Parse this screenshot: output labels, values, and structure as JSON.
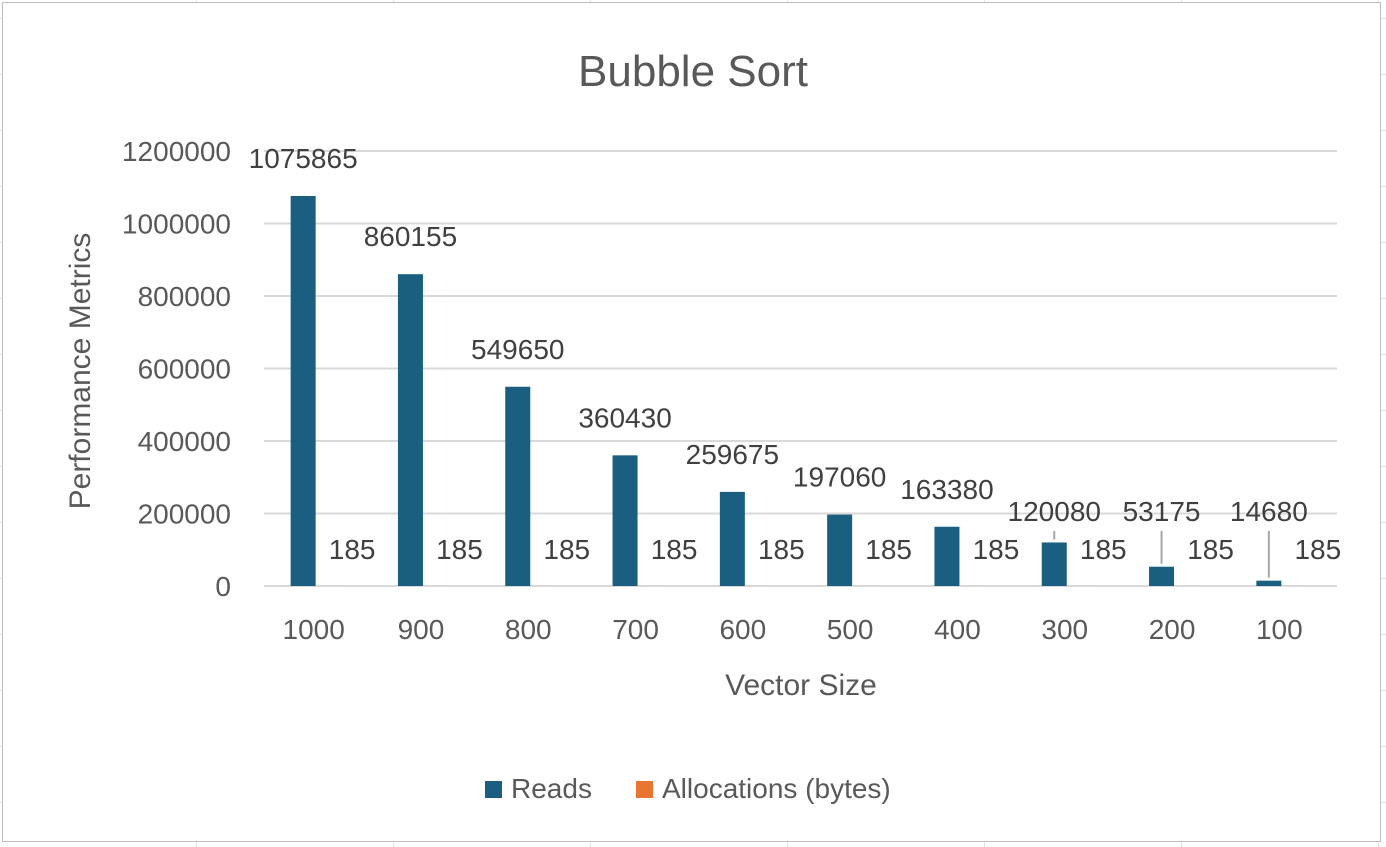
{
  "chart_data": {
    "type": "bar",
    "title": "Bubble Sort",
    "xlabel": "Vector Size",
    "ylabel": "Performance Metrics",
    "categories": [
      "1000",
      "900",
      "800",
      "700",
      "600",
      "500",
      "400",
      "300",
      "200",
      "100"
    ],
    "series": [
      {
        "name": "Reads",
        "color": "#1a5e80",
        "values": [
          1075865,
          860155,
          549650,
          360430,
          259675,
          197060,
          163380,
          120080,
          53175,
          14680
        ]
      },
      {
        "name": "Allocations (bytes)",
        "color": "#e87530",
        "values": [
          185,
          185,
          185,
          185,
          185,
          185,
          185,
          185,
          185,
          185
        ]
      }
    ],
    "ylim": [
      0,
      1200000
    ],
    "yticks": [
      "0",
      "200000",
      "400000",
      "600000",
      "800000",
      "1000000",
      "1200000"
    ],
    "grid": true,
    "legend": "bottom"
  }
}
